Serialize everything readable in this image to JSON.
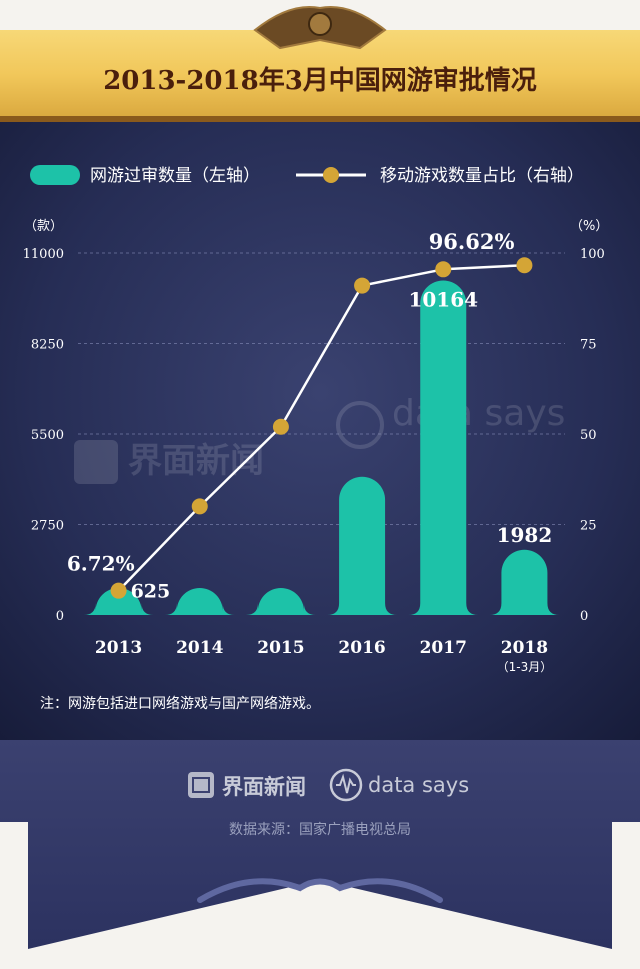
{
  "title": "2013-2018年3月中国网游审批情况",
  "legend": {
    "bar_label": "网游过审数量（左轴）",
    "line_label": "移动游戏数量占比（右轴）"
  },
  "left_axis_unit": "（款）",
  "right_axis_unit": "（%）",
  "note": "注：网游包括进口网络游戏与国产网络游戏。",
  "watermark": {
    "brand": "界面新闻",
    "datasays": "data says"
  },
  "footer": {
    "brand": "界面新闻",
    "datasays": "data says",
    "source": "数据来源：国家广播电视总局"
  },
  "colors": {
    "bar": "#1dc2a8",
    "line": "#ffffff",
    "marker": "#d4a536",
    "background": "#222a4d",
    "banner": "#f1c75a",
    "title": "#4a1f0c"
  },
  "chart_data": {
    "type": "bar+line",
    "categories": [
      "2013",
      "2014",
      "2015",
      "2016",
      "2017",
      "2018"
    ],
    "category_sublabels": [
      "",
      "",
      "",
      "",
      "",
      "（1-3月）"
    ],
    "left_axis": {
      "ylim": [
        0,
        11000
      ],
      "ticks": [
        "0",
        "2750",
        "5500",
        "8250",
        "11000"
      ]
    },
    "right_axis": {
      "ylim": [
        0,
        100
      ],
      "ticks": [
        "0",
        "25",
        "50",
        "75",
        "100"
      ]
    },
    "bars": {
      "values": [
        625,
        750,
        700,
        4200,
        10164,
        1982
      ]
    },
    "line": {
      "values": [
        6.72,
        30,
        52,
        91,
        95.5,
        96.62
      ]
    },
    "data_labels": [
      {
        "series": "bars",
        "index": 0,
        "text": "625"
      },
      {
        "series": "bars",
        "index": 4,
        "text": "10164"
      },
      {
        "series": "bars",
        "index": 5,
        "text": "1982"
      },
      {
        "series": "line",
        "index": 0,
        "text": "6.72%"
      },
      {
        "series": "line",
        "index": 5,
        "text": "96.62%"
      }
    ],
    "grid": true
  }
}
